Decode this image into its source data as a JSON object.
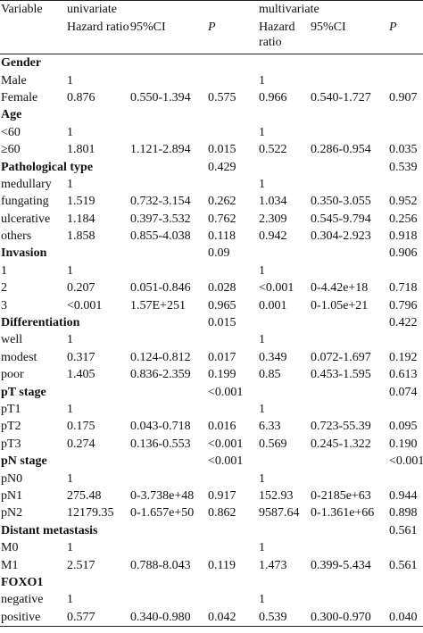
{
  "header": {
    "variable": "Variable",
    "univariate": "univariate",
    "multivariate": "multivariate",
    "hr": "Hazard ratio",
    "ci": "95%CI",
    "p": "P"
  },
  "rows": [
    {
      "label": "Gender",
      "group": true,
      "u_hr": "",
      "u_ci": "",
      "u_p": "",
      "m_hr": "",
      "m_ci": "",
      "m_p": ""
    },
    {
      "label": "Male",
      "group": false,
      "u_hr": "1",
      "u_ci": "",
      "u_p": "",
      "m_hr": "1",
      "m_ci": "",
      "m_p": ""
    },
    {
      "label": "Female",
      "group": false,
      "u_hr": "0.876",
      "u_ci": "0.550-1.394",
      "u_p": "0.575",
      "m_hr": "0.966",
      "m_ci": "0.540-1.727",
      "m_p": "0.907"
    },
    {
      "label": "Age",
      "group": true,
      "u_hr": "",
      "u_ci": "",
      "u_p": "",
      "m_hr": "",
      "m_ci": "",
      "m_p": ""
    },
    {
      "label": "<60",
      "group": false,
      "u_hr": "1",
      "u_ci": "",
      "u_p": "",
      "m_hr": "1",
      "m_ci": "",
      "m_p": ""
    },
    {
      "label": "≥60",
      "group": false,
      "u_hr": "1.801",
      "u_ci": "1.121-2.894",
      "u_p": "0.015",
      "m_hr": "0.522",
      "m_ci": "0.286-0.954",
      "m_p": "0.035"
    },
    {
      "label": "Pathological type",
      "group": true,
      "u_hr": "",
      "u_ci": "",
      "u_p": "0.429",
      "m_hr": "",
      "m_ci": "",
      "m_p": "0.539"
    },
    {
      "label": "medullary",
      "group": false,
      "u_hr": "1",
      "u_ci": "",
      "u_p": "",
      "m_hr": "1",
      "m_ci": "",
      "m_p": ""
    },
    {
      "label": "fungating",
      "group": false,
      "u_hr": "1.519",
      "u_ci": "0.732-3.154",
      "u_p": "0.262",
      "m_hr": "1.034",
      "m_ci": "0.350-3.055",
      "m_p": "0.952"
    },
    {
      "label": "ulcerative",
      "group": false,
      "u_hr": "1.184",
      "u_ci": "0.397-3.532",
      "u_p": "0.762",
      "m_hr": "2.309",
      "m_ci": "0.545-9.794",
      "m_p": "0.256"
    },
    {
      "label": "others",
      "group": false,
      "u_hr": "1.858",
      "u_ci": "0.855-4.038",
      "u_p": "0.118",
      "m_hr": "0.942",
      "m_ci": "0.304-2.923",
      "m_p": "0.918"
    },
    {
      "label": "Invasion",
      "group": true,
      "u_hr": "",
      "u_ci": "",
      "u_p": "0.09",
      "m_hr": "",
      "m_ci": "",
      "m_p": "0.906"
    },
    {
      "label": "1",
      "group": false,
      "u_hr": "1",
      "u_ci": "",
      "u_p": "",
      "m_hr": "1",
      "m_ci": "",
      "m_p": ""
    },
    {
      "label": "2",
      "group": false,
      "u_hr": "0.207",
      "u_ci": "0.051-0.846",
      "u_p": "0.028",
      "m_hr": "<0.001",
      "m_ci": "0-4.42e+18",
      "m_p": "0.718"
    },
    {
      "label": "3",
      "group": false,
      "u_hr": "<0.001",
      "u_ci": "1.57E+251",
      "u_p": "0.965",
      "m_hr": "0.001",
      "m_ci": "0-1.05e+21",
      "m_p": "0.796"
    },
    {
      "label": "Differentiation",
      "group": true,
      "u_hr": "",
      "u_ci": "",
      "u_p": "0.015",
      "m_hr": "",
      "m_ci": "",
      "m_p": "0.422"
    },
    {
      "label": "well",
      "group": false,
      "u_hr": "1",
      "u_ci": "",
      "u_p": "",
      "m_hr": "1",
      "m_ci": "",
      "m_p": ""
    },
    {
      "label": "modest",
      "group": false,
      "u_hr": "0.317",
      "u_ci": "0.124-0.812",
      "u_p": "0.017",
      "m_hr": "0.349",
      "m_ci": "0.072-1.697",
      "m_p": "0.192"
    },
    {
      "label": "poor",
      "group": false,
      "u_hr": "1.405",
      "u_ci": "0.836-2.359",
      "u_p": "0.199",
      "m_hr": "0.85",
      "m_ci": "0.453-1.595",
      "m_p": "0.613"
    },
    {
      "label": "pT stage",
      "group": true,
      "u_hr": "",
      "u_ci": "",
      "u_p": "<0.001",
      "m_hr": "",
      "m_ci": "",
      "m_p": "0.074"
    },
    {
      "label": "pT1",
      "group": false,
      "u_hr": "1",
      "u_ci": "",
      "u_p": "",
      "m_hr": "1",
      "m_ci": "",
      "m_p": ""
    },
    {
      "label": "pT2",
      "group": false,
      "u_hr": "0.175",
      "u_ci": "0.043-0.718",
      "u_p": "0.016",
      "m_hr": "6.33",
      "m_ci": "0.723-55.39",
      "m_p": "0.095"
    },
    {
      "label": "pT3",
      "group": false,
      "u_hr": "0.274",
      "u_ci": "0.136-0.553",
      "u_p": "<0.001",
      "m_hr": "0.569",
      "m_ci": "0.245-1.322",
      "m_p": "0.190"
    },
    {
      "label": "pN stage",
      "group": true,
      "u_hr": "",
      "u_ci": "",
      "u_p": "<0.001",
      "m_hr": "",
      "m_ci": "",
      "m_p": "<0.001"
    },
    {
      "label": "pN0",
      "group": false,
      "u_hr": "1",
      "u_ci": "",
      "u_p": "",
      "m_hr": "1",
      "m_ci": "",
      "m_p": ""
    },
    {
      "label": "pN1",
      "group": false,
      "u_hr": "275.48",
      "u_ci": "0-3.738e+48",
      "u_p": "0.917",
      "m_hr": "152.93",
      "m_ci": "0-2185e+63",
      "m_p": "0.944"
    },
    {
      "label": "pN2",
      "group": false,
      "u_hr": "12179.35",
      "u_ci": "0-1.657e+50",
      "u_p": "0.862",
      "m_hr": "9587.64",
      "m_ci": "0-1.361e+66",
      "m_p": "0.898"
    },
    {
      "label": "Distant metastasis",
      "group": true,
      "u_hr": "",
      "u_ci": "",
      "u_p": "",
      "m_hr": "",
      "m_ci": "",
      "m_p": "0.561"
    },
    {
      "label": "M0",
      "group": false,
      "u_hr": "1",
      "u_ci": "",
      "u_p": "",
      "m_hr": "1",
      "m_ci": "",
      "m_p": ""
    },
    {
      "label": "M1",
      "group": false,
      "u_hr": "2.517",
      "u_ci": "0.788-8.043",
      "u_p": "0.119",
      "m_hr": "1.473",
      "m_ci": "0.399-5.434",
      "m_p": "0.561"
    },
    {
      "label": "FOXO1",
      "group": true,
      "u_hr": "",
      "u_ci": "",
      "u_p": "",
      "m_hr": "",
      "m_ci": "",
      "m_p": ""
    },
    {
      "label": "negative",
      "group": false,
      "u_hr": "1",
      "u_ci": "",
      "u_p": "",
      "m_hr": "1",
      "m_ci": "",
      "m_p": ""
    },
    {
      "label": "positive",
      "group": false,
      "u_hr": "0.577",
      "u_ci": "0.340-0.980",
      "u_p": "0.042",
      "m_hr": "0.539",
      "m_ci": "0.300-0.970",
      "m_p": "0.040"
    }
  ]
}
